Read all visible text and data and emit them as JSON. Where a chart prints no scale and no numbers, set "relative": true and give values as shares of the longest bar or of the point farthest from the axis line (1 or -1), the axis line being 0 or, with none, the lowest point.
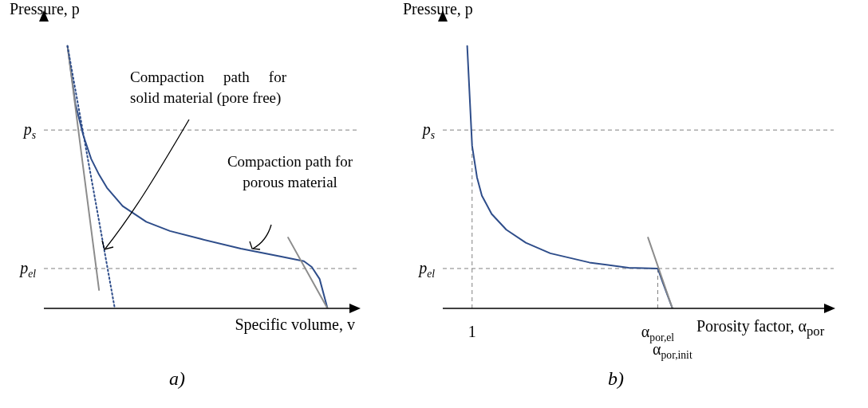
{
  "chart_data": [
    {
      "type": "line",
      "relative": true,
      "title": "a)",
      "xlabel": "Specific volume, v",
      "ylabel": "Pressure, p",
      "marker": "none",
      "legend": false,
      "categories": [
        null,
        null,
        null,
        null,
        null,
        null,
        null,
        null,
        null,
        null,
        null,
        null,
        null,
        null,
        null,
        null,
        null,
        null,
        null,
        null,
        null,
        null,
        null,
        null,
        null,
        null,
        null,
        null,
        null,
        null,
        null,
        null,
        null,
        null,
        null,
        null,
        null,
        null,
        null,
        null,
        null
      ],
      "series": [
        {
          "color": "#2e4d8a",
          "line_style": "solid",
          "values": [
            null,
            null,
            null,
            1,
            0.78,
            0.66,
            0.57,
            0.51,
            0.46,
            null,
            0.39,
            null,
            null,
            0.33,
            null,
            null,
            0.295,
            null,
            null,
            null,
            0.264,
            null,
            null,
            null,
            null,
            0.228,
            null,
            null,
            null,
            null,
            0.198,
            null,
            null,
            0.18,
            0.158,
            0.112,
            0,
            null,
            null,
            null,
            null
          ]
        },
        {
          "color": "#8c8c8c",
          "line_style": "solid",
          "values": [
            null,
            null,
            null,
            1,
            null,
            null,
            null,
            0.07,
            null,
            null,
            null,
            null,
            null,
            null,
            null,
            null,
            null,
            null,
            null,
            null,
            null,
            null,
            null,
            null,
            null,
            null,
            null,
            null,
            null,
            null,
            null,
            null,
            null,
            null,
            null,
            null,
            null,
            null,
            null,
            null,
            null
          ]
        },
        {
          "color": "#2e4d8a",
          "line_style": "dotted",
          "values": [
            null,
            null,
            null,
            1,
            null,
            null,
            null,
            null,
            null,
            0,
            null,
            null,
            null,
            null,
            null,
            null,
            null,
            null,
            null,
            null,
            null,
            null,
            null,
            null,
            null,
            null,
            null,
            null,
            null,
            null,
            null,
            null,
            null,
            null,
            null,
            null,
            null,
            null,
            null,
            null,
            null
          ]
        },
        {
          "color": "#8c8c8c",
          "line_style": "solid",
          "values": [
            null,
            null,
            null,
            null,
            null,
            null,
            null,
            null,
            null,
            null,
            null,
            null,
            null,
            null,
            null,
            null,
            null,
            null,
            null,
            null,
            null,
            null,
            null,
            null,
            null,
            null,
            null,
            null,
            null,
            null,
            null,
            0.27,
            null,
            null,
            null,
            null,
            0,
            null,
            null,
            null,
            null
          ]
        }
      ],
      "ref_lines": [
        {
          "axis": "y",
          "value": 0.68,
          "label": "p$_{s}$",
          "color": "#808080",
          "line_style": "dashed"
        },
        {
          "axis": "y",
          "value": 0.152,
          "label": "p$_{el}$",
          "color": "#808080",
          "line_style": "dashed"
        }
      ],
      "annotations": [
        "Compaction path for solid material (pore free)",
        "Compaction path for porous material"
      ]
    },
    {
      "type": "line",
      "relative": true,
      "title": "b)",
      "xlabel": "Porosity factor, α$_{por}$",
      "ylabel": "Pressure, p",
      "marker": "none",
      "legend": false,
      "categories": [
        null,
        null,
        null,
        null,
        null,
        null,
        "1",
        null,
        null,
        null,
        null,
        null,
        null,
        null,
        null,
        null,
        null,
        null,
        null,
        null,
        null,
        null,
        null,
        null,
        null,
        null,
        null,
        null,
        null,
        null,
        null,
        null,
        null,
        null,
        null,
        null,
        null,
        null,
        null,
        null,
        null,
        null,
        null,
        null,
        "α$_{por,el}$",
        null,
        null,
        "α$_{por,init}$",
        null,
        null,
        null,
        null,
        null,
        null,
        null,
        null,
        null,
        null,
        null,
        null,
        null,
        null,
        null,
        null,
        null,
        null,
        null,
        null,
        null,
        null,
        null,
        null,
        null,
        null,
        null,
        null,
        null,
        null,
        null,
        null,
        null
      ],
      "series": [
        {
          "color": "#2e4d8a",
          "line_style": "solid",
          "values": [
            null,
            null,
            null,
            null,
            null,
            1,
            0.62,
            0.5,
            0.43,
            null,
            0.36,
            null,
            null,
            0.3,
            null,
            null,
            null,
            0.25,
            null,
            null,
            null,
            null,
            0.21,
            null,
            null,
            null,
            null,
            null,
            null,
            null,
            0.175,
            null,
            null,
            null,
            null,
            null,
            null,
            null,
            0.155,
            null,
            null,
            null,
            null,
            null,
            0.152,
            0.1,
            0.05,
            0,
            null,
            null,
            null,
            null,
            null,
            null,
            null,
            null,
            null,
            null,
            null,
            null,
            null,
            null,
            null,
            null,
            null,
            null,
            null,
            null,
            null,
            null,
            null,
            null,
            null,
            null,
            null,
            null,
            null,
            null,
            null,
            null,
            null
          ]
        },
        {
          "color": "#8c8c8c",
          "line_style": "solid",
          "values": [
            null,
            null,
            null,
            null,
            null,
            null,
            null,
            null,
            null,
            null,
            null,
            null,
            null,
            null,
            null,
            null,
            null,
            null,
            null,
            null,
            null,
            null,
            null,
            null,
            null,
            null,
            null,
            null,
            null,
            null,
            null,
            null,
            null,
            null,
            null,
            null,
            null,
            null,
            null,
            null,
            null,
            null,
            0.27,
            null,
            null,
            null,
            null,
            0,
            null,
            null,
            null,
            null,
            null,
            null,
            null,
            null,
            null,
            null,
            null,
            null,
            null,
            null,
            null,
            null,
            null,
            null,
            null,
            null,
            null,
            null,
            null,
            null,
            null,
            null,
            null,
            null,
            null,
            null,
            null,
            null,
            null
          ]
        }
      ],
      "ref_lines": [
        {
          "axis": "y",
          "value": 0.68,
          "label": "p$_{s}$",
          "color": "#808080",
          "line_style": "dashed"
        },
        {
          "axis": "y",
          "value": 0.152,
          "label": "p$_{el}$",
          "color": "#808080",
          "line_style": "dashed"
        },
        {
          "axis": "x",
          "value": "1",
          "label": null,
          "color": "#808080",
          "line_style": "dashed"
        },
        {
          "axis": "x",
          "value": "α$_{por,el}$",
          "label": null,
          "color": "#808080",
          "line_style": "dashed"
        }
      ]
    }
  ]
}
